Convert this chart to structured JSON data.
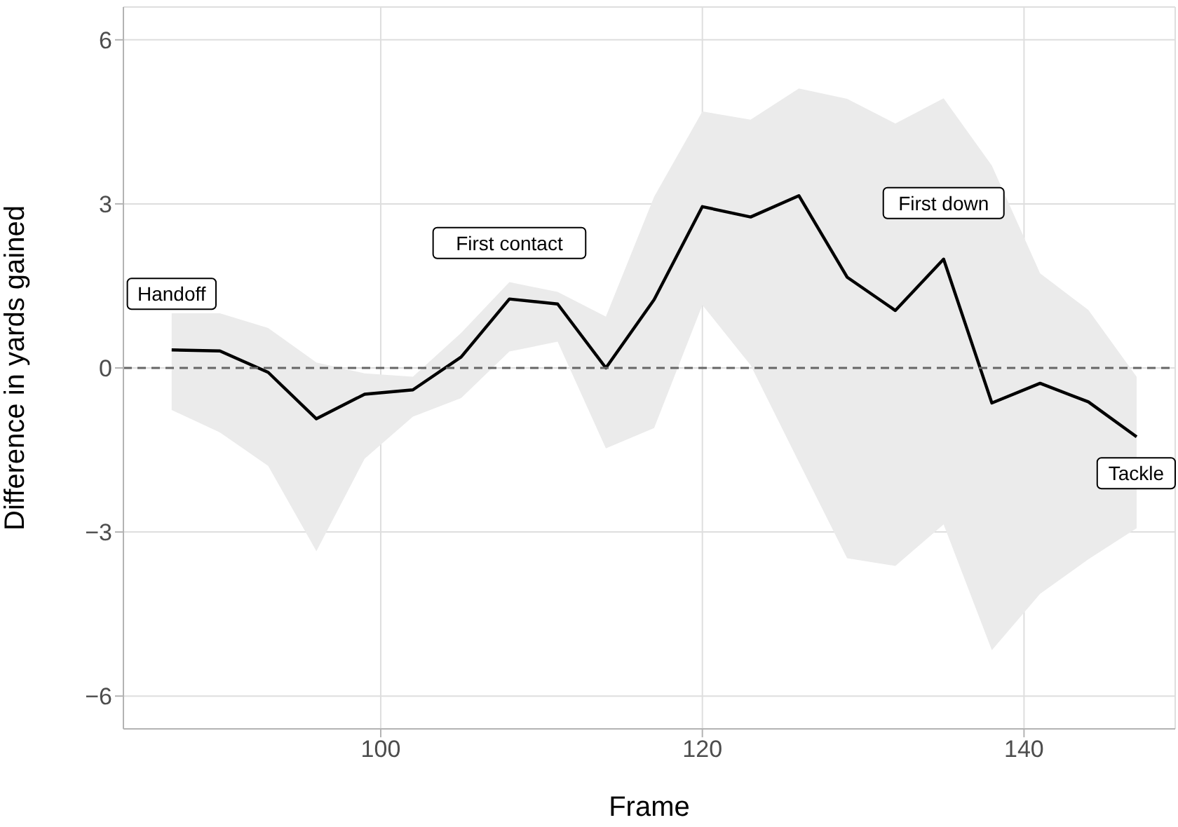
{
  "chart_data": {
    "type": "line",
    "xlabel": "Frame",
    "ylabel": "Difference in yards gained",
    "xlim": [
      84,
      149.4
    ],
    "ylim": [
      -6.6,
      6.6
    ],
    "xticks": [
      100,
      120,
      140
    ],
    "yticks": [
      {
        "value": -6,
        "label": "−6"
      },
      {
        "value": -3,
        "label": "−3"
      },
      0,
      3,
      6
    ],
    "grid": true,
    "legend": false,
    "marker": "none",
    "line_style": "solid",
    "series": [
      {
        "color": "#000000",
        "x": [
          87,
          90,
          93,
          96,
          99,
          102,
          105,
          108,
          111,
          114,
          117,
          120,
          123,
          126,
          129,
          132,
          135,
          138,
          141,
          144,
          147
        ],
        "values": [
          0.33,
          0.31,
          -0.08,
          -0.93,
          -0.48,
          -0.4,
          0.2,
          1.26,
          1.17,
          0,
          1.25,
          2.95,
          2.76,
          3.15,
          1.66,
          1.05,
          1.99,
          -0.64,
          -0.28,
          -0.62,
          -1.26
        ],
        "lower": [
          -0.77,
          -1.18,
          -1.79,
          -3.35,
          -1.66,
          -0.89,
          -0.55,
          0.3,
          0.48,
          -1.47,
          -1.1,
          1.15,
          0.05,
          -1.72,
          -3.48,
          -3.62,
          -2.86,
          -5.16,
          -4.13,
          -3.5,
          -2.93
        ],
        "upper": [
          1,
          1,
          0.73,
          0.1,
          -0.1,
          -0.16,
          0.64,
          1.57,
          1.39,
          0.94,
          3.13,
          4.69,
          4.54,
          5.11,
          4.92,
          4.47,
          4.93,
          3.7,
          1.73,
          1.06,
          -0.16
        ]
      }
    ],
    "ref_lines": [
      {
        "axis": "y",
        "value": 0,
        "color": "#666666",
        "line_style": "dashed"
      }
    ],
    "annotations": [
      {
        "text": "Handoff",
        "x": 87,
        "y": 0.33
      },
      {
        "text": "First contact",
        "x": 108,
        "y": 1.26
      },
      {
        "text": "First down",
        "x": 135,
        "y": 1.99
      },
      {
        "text": "Tackle",
        "x": 147,
        "y": -1.26
      }
    ]
  }
}
